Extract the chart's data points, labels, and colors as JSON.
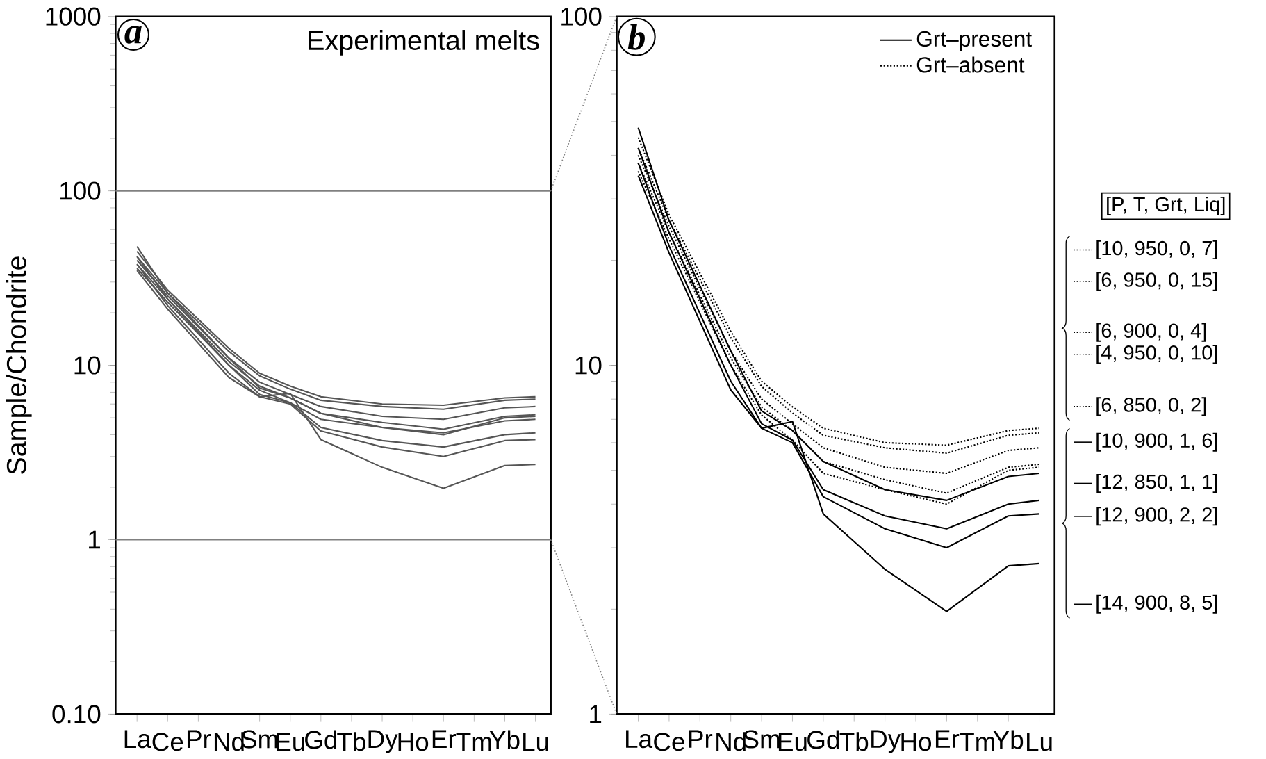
{
  "chart_data": [
    {
      "type": "line",
      "title": "a",
      "ylabel": "Sample/Chondrite",
      "log": true,
      "ylim": [
        0.1,
        1000
      ],
      "yticks": [
        {
          "value": 0.1,
          "label": "0.10"
        },
        1,
        10,
        100,
        1000
      ],
      "categories": [
        "La",
        "Ce",
        "Pr",
        "Nd",
        "Sm",
        "Eu",
        "Gd",
        "Tb",
        "Dy",
        "Ho",
        "Er",
        "Tm",
        "Yb",
        "Lu"
      ],
      "ref_lines": [
        {
          "axis": "y",
          "value": 1,
          "color": "#808080"
        },
        {
          "axis": "y",
          "value": 100,
          "color": "#808080"
        }
      ],
      "annotations": [
        "Experimental melts"
      ],
      "series": [
        {
          "color": "#555555",
          "line_style": "solid",
          "values": [
            45,
            27,
            null,
            12.5,
            9,
            7.6,
            6.6,
            null,
            6.0,
            null,
            5.9,
            null,
            6.5,
            6.6
          ]
        },
        {
          "color": "#555555",
          "line_style": "solid",
          "values": [
            42,
            26,
            null,
            12,
            8.7,
            7.3,
            6.3,
            null,
            5.8,
            null,
            5.6,
            null,
            6.3,
            6.4
          ]
        },
        {
          "color": "#555555",
          "line_style": "solid",
          "values": [
            40,
            25,
            null,
            11,
            8,
            6.8,
            5.8,
            null,
            5.1,
            null,
            4.9,
            null,
            5.7,
            5.8
          ]
        },
        {
          "color": "#555555",
          "line_style": "solid",
          "values": [
            38,
            24,
            null,
            10.5,
            7.6,
            6.5,
            5.3,
            null,
            4.7,
            null,
            4.3,
            null,
            5.1,
            5.2
          ]
        },
        {
          "color": "#555555",
          "line_style": "solid",
          "values": [
            36,
            23,
            null,
            10,
            7.2,
            6.1,
            4.9,
            null,
            4.4,
            null,
            4.0,
            null,
            5.0,
            5.1
          ]
        },
        {
          "color": "#555555",
          "line_style": "solid",
          "values": [
            48,
            26,
            null,
            11,
            7.4,
            6.5,
            5.3,
            null,
            4.4,
            null,
            4.1,
            null,
            4.8,
            4.9
          ]
        },
        {
          "color": "#555555",
          "line_style": "solid",
          "values": [
            42,
            24,
            null,
            10,
            6.8,
            6.1,
            4.4,
            null,
            3.7,
            null,
            3.4,
            null,
            4.0,
            4.1
          ]
        },
        {
          "color": "#555555",
          "line_style": "solid",
          "values": [
            38,
            22,
            null,
            9,
            6.6,
            6.0,
            4.2,
            null,
            3.4,
            null,
            3.0,
            null,
            3.7,
            3.75
          ]
        },
        {
          "color": "#555555",
          "line_style": "solid",
          "values": [
            35,
            21,
            null,
            8.5,
            6.6,
            6.9,
            3.75,
            null,
            2.6,
            null,
            1.97,
            null,
            2.66,
            2.7
          ]
        }
      ]
    },
    {
      "type": "line",
      "title": "b",
      "log": true,
      "ylim": [
        1,
        100
      ],
      "yticks": [
        1,
        10,
        100
      ],
      "legend": "right",
      "categories": [
        "La",
        "Ce",
        "Pr",
        "Nd",
        "Sm",
        "Eu",
        "Gd",
        "Tb",
        "Dy",
        "Ho",
        "Er",
        "Tm",
        "Yb",
        "Lu"
      ],
      "annotations": [
        "Grt–present",
        "Grt–absent",
        "[P, T, Grt, Liq]"
      ],
      "series": [
        {
          "name": "[10, 950, 0, 7]",
          "color": "#000000",
          "line_style": "dotted",
          "values": [
            45,
            27,
            null,
            12.5,
            9,
            7.6,
            6.6,
            null,
            6.0,
            null,
            5.9,
            null,
            6.5,
            6.6
          ]
        },
        {
          "name": "[6, 950, 0, 15]",
          "color": "#000000",
          "line_style": "dotted",
          "values": [
            42,
            26,
            null,
            12,
            8.7,
            7.3,
            6.3,
            null,
            5.8,
            null,
            5.6,
            null,
            6.3,
            6.4
          ]
        },
        {
          "name": "[6, 900, 0, 4]",
          "color": "#000000",
          "line_style": "dotted",
          "values": [
            40,
            25,
            null,
            11,
            8,
            6.8,
            5.8,
            null,
            5.1,
            null,
            4.9,
            null,
            5.7,
            5.8
          ]
        },
        {
          "name": "[4, 950, 0, 10]",
          "color": "#000000",
          "line_style": "dotted",
          "values": [
            38,
            24,
            null,
            10.5,
            7.6,
            6.5,
            5.3,
            null,
            4.7,
            null,
            4.3,
            null,
            5.1,
            5.2
          ]
        },
        {
          "name": "[6, 850, 0, 2]",
          "color": "#000000",
          "line_style": "dotted",
          "values": [
            36,
            23,
            null,
            10,
            7.2,
            6.1,
            4.9,
            null,
            4.4,
            null,
            4.0,
            null,
            5.0,
            5.1
          ]
        },
        {
          "name": "[10, 900, 1, 6]",
          "color": "#000000",
          "line_style": "solid",
          "values": [
            48,
            26,
            null,
            11,
            7.4,
            6.5,
            5.3,
            null,
            4.4,
            null,
            4.1,
            null,
            4.8,
            4.9
          ]
        },
        {
          "name": "[12, 850, 1, 1]",
          "color": "#000000",
          "line_style": "solid",
          "values": [
            42,
            24,
            null,
            10,
            6.8,
            6.1,
            4.4,
            null,
            3.7,
            null,
            3.4,
            null,
            4.0,
            4.1
          ]
        },
        {
          "name": "[12, 900, 2, 2]",
          "color": "#000000",
          "line_style": "solid",
          "values": [
            38,
            22,
            null,
            9,
            6.6,
            6.0,
            4.2,
            null,
            3.4,
            null,
            3.0,
            null,
            3.7,
            3.75
          ]
        },
        {
          "name": "[14, 900, 8, 5]",
          "color": "#000000",
          "line_style": "solid",
          "values": [
            35,
            21,
            null,
            8.5,
            6.6,
            6.9,
            3.75,
            null,
            2.6,
            null,
            1.97,
            null,
            2.66,
            2.7
          ]
        }
      ]
    }
  ]
}
